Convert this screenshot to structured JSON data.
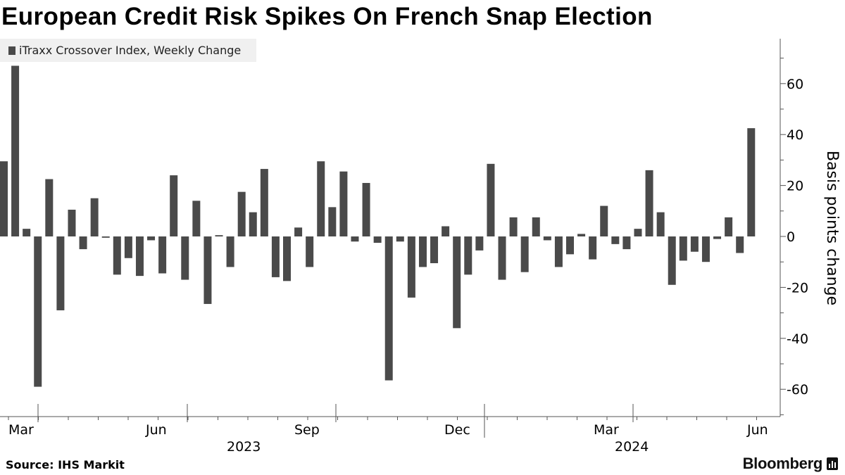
{
  "title": "European Credit Risk Spikes On French Snap Election",
  "legend": {
    "label": "iTraxx Crossover Index, Weekly Change"
  },
  "source": "Source: IHS Markit",
  "brand": "Bloomberg",
  "colors": {
    "bar": "#4a4a4a",
    "axis": "#555555",
    "text": "#000000",
    "legend_bg": "#f0f0f0"
  },
  "chart_data": {
    "type": "bar",
    "title": "European Credit Risk Spikes On French Snap Election",
    "series": [
      {
        "name": "iTraxx Crossover Index, Weekly Change",
        "values": [
          29.5,
          67,
          3,
          -59,
          22.5,
          -29,
          10.5,
          -5,
          15,
          -0.5,
          -15,
          -8.5,
          -15.5,
          -1.5,
          -14.5,
          24,
          -17,
          14,
          -26.5,
          0.5,
          -12,
          17.5,
          9.5,
          26.5,
          -16,
          -17.5,
          3.5,
          -12,
          29.5,
          11.5,
          25.5,
          -2,
          21,
          -2.5,
          -56.5,
          -2,
          -24,
          -12,
          -10.5,
          4,
          -36,
          -15,
          -5.5,
          28.5,
          -17,
          7.5,
          -14,
          7.5,
          -1.5,
          -12,
          -7,
          1,
          -9,
          12,
          -3,
          -5,
          3,
          26,
          9.5,
          -19,
          -9.5,
          -6,
          -10,
          -1,
          7.5,
          -6.5,
          42.5
        ]
      }
    ],
    "xlabel": "",
    "ylabel": "Basis points change",
    "ylim": [
      -70,
      78
    ],
    "yticks": [
      -60,
      -40,
      -20,
      0,
      20,
      40,
      60
    ],
    "xtick_labels": [
      "Mar",
      "Jun",
      "Sep",
      "Dec",
      "Mar",
      "Jun"
    ],
    "year_labels": [
      "2023",
      "2024"
    ],
    "grid": false,
    "legend_position": "top-left"
  }
}
